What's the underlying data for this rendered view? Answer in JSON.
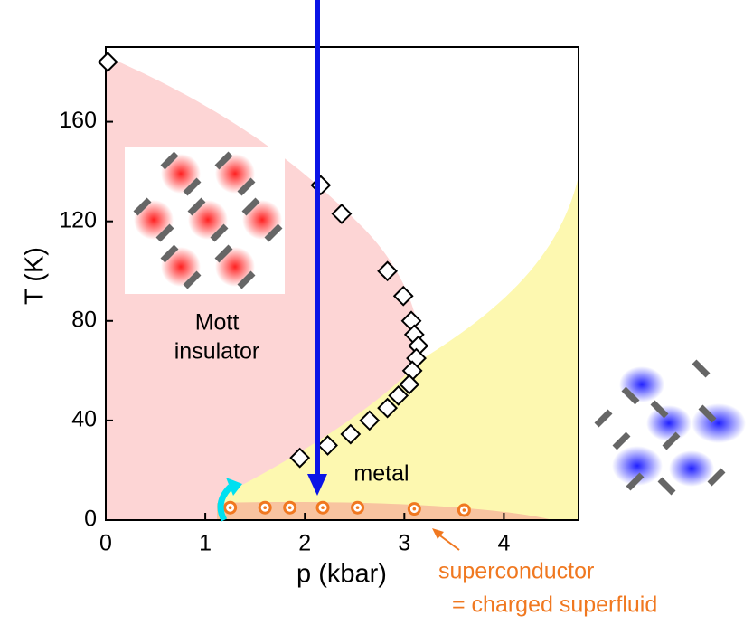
{
  "chart_data": {
    "type": "scatter",
    "x_label": "p (kbar)",
    "y_label": "T (K)",
    "xlim": [
      0,
      4.75
    ],
    "ylim": [
      0,
      190
    ],
    "xticks": [
      0,
      1,
      2,
      3,
      4
    ],
    "yticks": [
      0,
      40,
      80,
      120,
      160
    ],
    "annotations": [
      "Mott",
      "insulator",
      "metal",
      "superconductor",
      "= charged superfluid"
    ],
    "series": [
      {
        "marker": "diamond",
        "color": "#000000",
        "x": [
          0.02,
          2.16,
          2.37,
          2.83,
          2.99,
          3.07,
          3.1,
          3.14,
          3.12,
          3.08,
          3.05,
          2.94,
          2.83,
          2.65,
          2.46,
          2.23,
          1.95
        ],
        "values": [
          184,
          134.5,
          123,
          100,
          90,
          80,
          74.5,
          70,
          65,
          60,
          54.5,
          50,
          45,
          40,
          34.5,
          30,
          25
        ]
      },
      {
        "marker": "circle",
        "color": "#f07820",
        "x": [
          1.25,
          1.6,
          1.85,
          2.18,
          2.53,
          3.1,
          3.6
        ],
        "values": [
          5,
          5,
          5,
          5,
          5,
          4.5,
          4
        ]
      }
    ]
  }
}
